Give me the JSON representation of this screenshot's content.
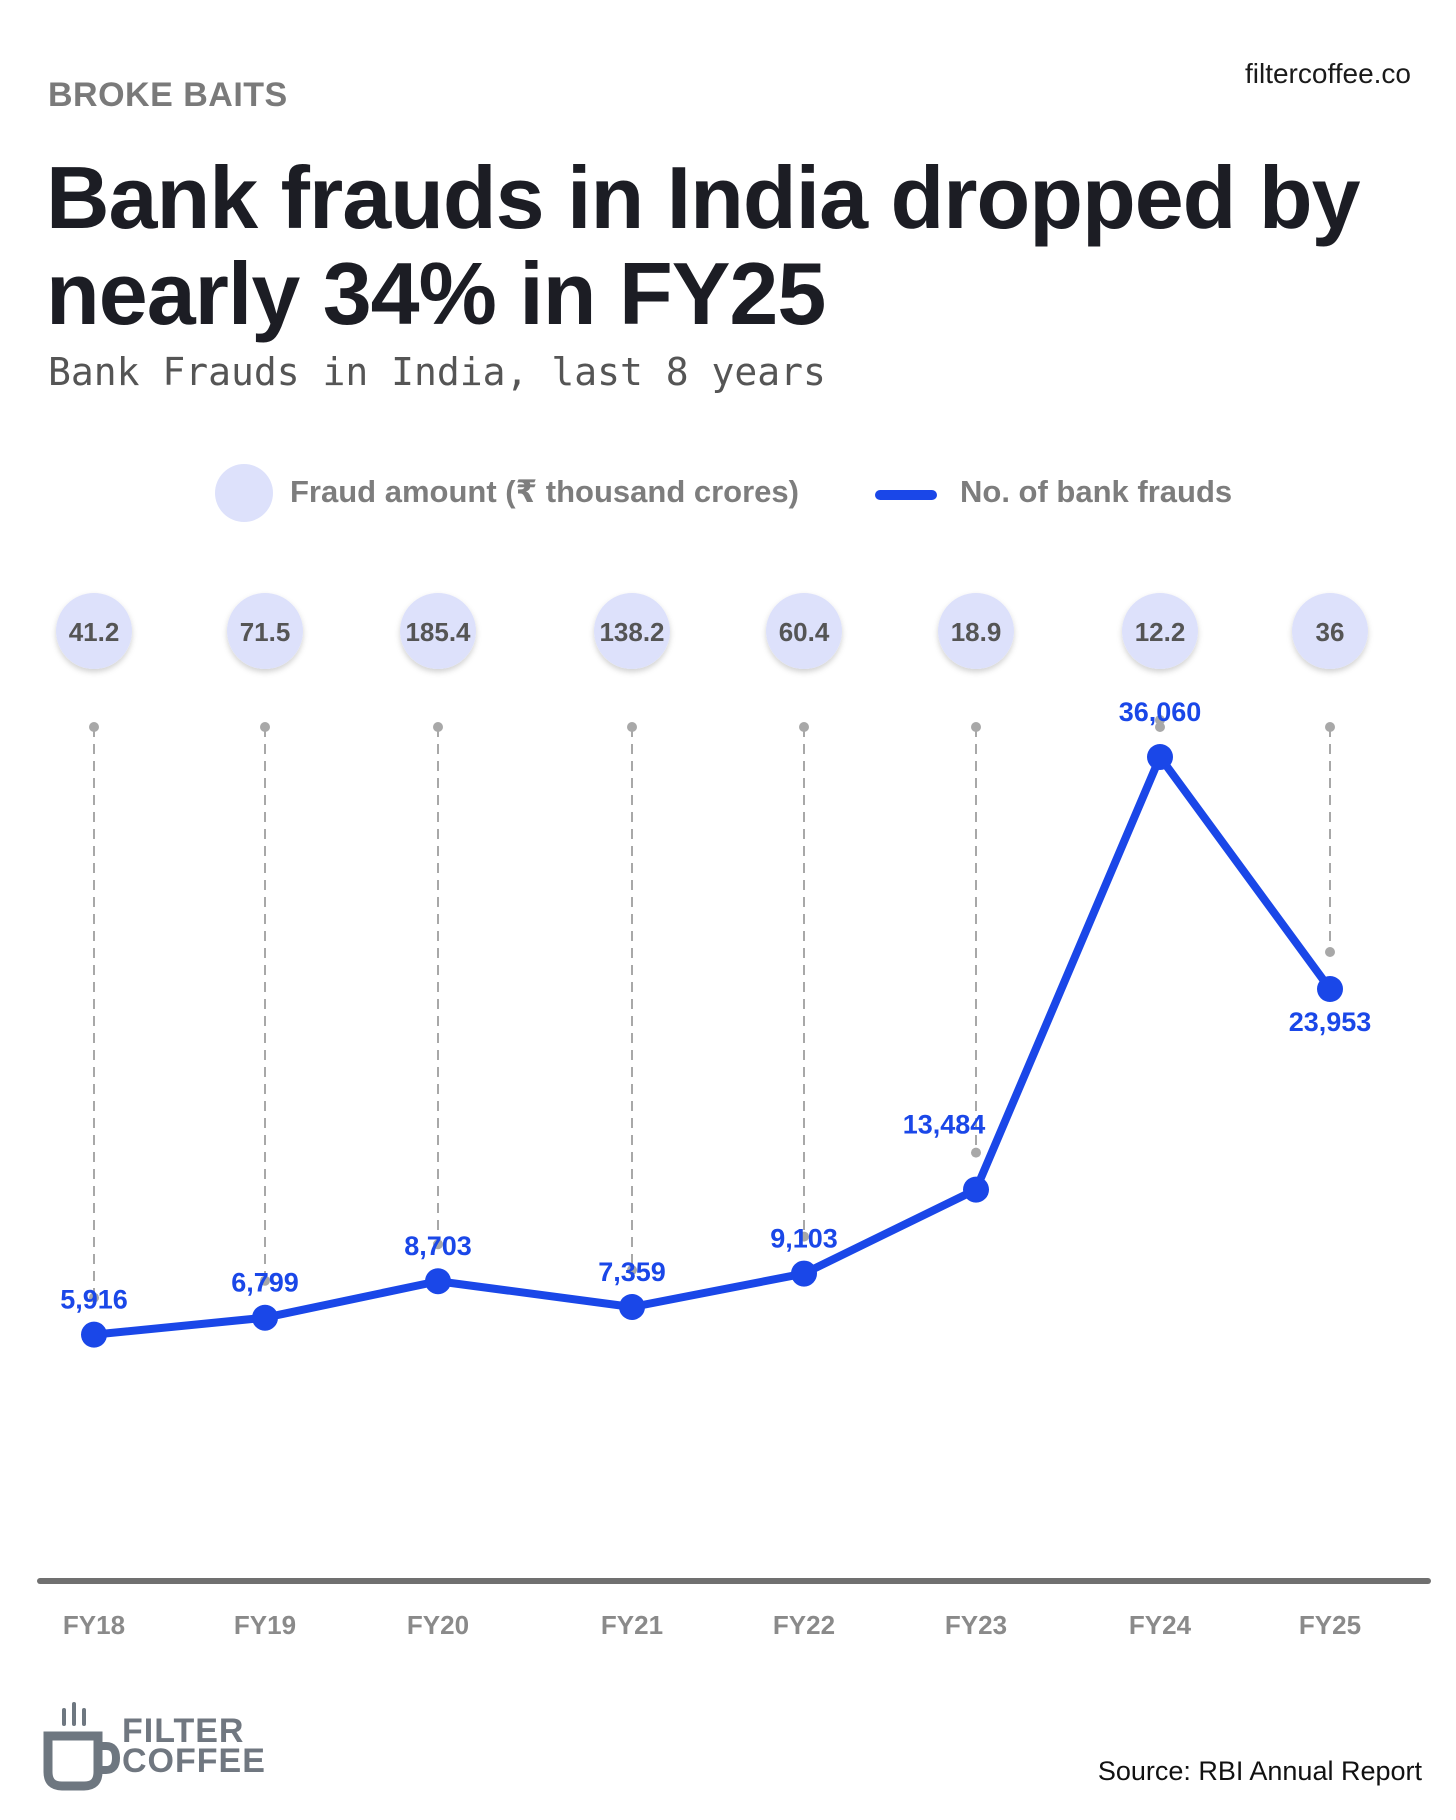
{
  "header": {
    "kicker": "BROKE BAITS",
    "site": "filtercoffee.co",
    "title": "Bank frauds in India dropped by nearly 34% in FY25",
    "subtitle": "Bank Frauds in India, last 8 years"
  },
  "legend": {
    "amount_label": "Fraud amount (₹ thousand crores)",
    "count_label": "No. of bank frauds"
  },
  "colors": {
    "line": "#1a47e8",
    "bubble": "#dde1fb",
    "axis": "#707070",
    "dashed": "#a8a8a8"
  },
  "chart_data": {
    "type": "line",
    "title": "Bank Frauds in India, last 8 years",
    "categories": [
      "FY18",
      "FY19",
      "FY20",
      "FY21",
      "FY22",
      "FY23",
      "FY24",
      "FY25"
    ],
    "series": [
      {
        "name": "No. of bank frauds",
        "values": [
          5916,
          6799,
          8703,
          7359,
          9103,
          13484,
          36060,
          23953
        ],
        "labels": [
          "5,916",
          "6,799",
          "8,703",
          "7,359",
          "9,103",
          "13,484",
          "36,060",
          "23,953"
        ]
      },
      {
        "name": "Fraud amount (₹ thousand crores)",
        "values": [
          41.2,
          71.5,
          185.4,
          138.2,
          60.4,
          18.9,
          12.2,
          36
        ],
        "labels": [
          "41.2",
          "71.5",
          "185.4",
          "138.2",
          "60.4",
          "18.9",
          "12.2",
          "36"
        ]
      }
    ],
    "ylim": [
      0,
      40000
    ],
    "grid": false
  },
  "footer": {
    "logo_line1": "FILTER",
    "logo_line2": "COFFEE",
    "source": "Source: RBI Annual Report"
  }
}
